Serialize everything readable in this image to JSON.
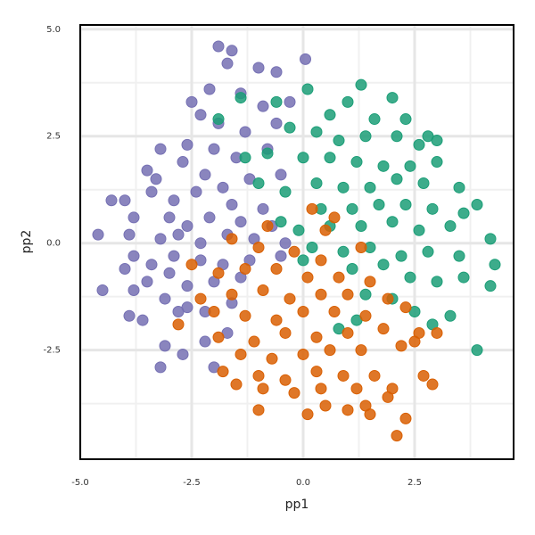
{
  "chart_data": {
    "type": "scatter",
    "x_label": "pp1",
    "y_label": "pp2",
    "xlim": [
      -5.0,
      4.72
    ],
    "ylim": [
      -5.05,
      5.1
    ],
    "xticks": [
      {
        "value": -5,
        "label": "-5.0"
      },
      {
        "value": -2.5,
        "label": "-2.5"
      },
      {
        "value": 0,
        "label": "0.0"
      },
      {
        "value": 2.5,
        "label": "2.5"
      }
    ],
    "yticks": [
      {
        "value": -2.5,
        "label": "-2.5"
      },
      {
        "value": 0,
        "label": "0.0"
      },
      {
        "value": 2.5,
        "label": "2.5"
      },
      {
        "value": 5,
        "label": "5.0"
      }
    ],
    "grid": true,
    "series": [
      {
        "color": "#7570b3",
        "x": [
          -1.9,
          -1.6,
          -1.7,
          -1.0,
          -0.6,
          0.05,
          -2.1,
          -2.5,
          -1.4,
          -0.9,
          -0.3,
          -2.3,
          -1.9,
          -1.3,
          -0.6,
          -3.2,
          -2.6,
          -2.0,
          -1.5,
          -0.8,
          -3.5,
          -3.3,
          -2.7,
          -2.2,
          -1.8,
          -1.2,
          -0.5,
          -4.3,
          -4.0,
          -3.4,
          -2.9,
          -2.4,
          -1.6,
          -0.9,
          -3.8,
          -3.0,
          -2.6,
          -2.1,
          -1.4,
          -0.7,
          -4.6,
          -3.9,
          -3.2,
          -2.8,
          -2.3,
          -1.7,
          -1.1,
          -0.4,
          -3.8,
          -3.4,
          -2.9,
          -2.3,
          -1.8,
          -1.2,
          -0.5,
          -4.0,
          -3.5,
          -3.0,
          -2.6,
          -2.0,
          -1.4,
          -4.5,
          -3.8,
          -3.1,
          -2.6,
          -2.2,
          -1.6,
          -3.9,
          -3.6,
          -2.8,
          -2.2,
          -3.1,
          -2.7,
          -3.2,
          -2.0,
          -1.7
        ],
        "values": [
          4.6,
          4.5,
          4.2,
          4.1,
          4.0,
          4.3,
          3.6,
          3.3,
          3.5,
          3.2,
          3.3,
          3.0,
          2.8,
          2.6,
          2.8,
          2.2,
          2.3,
          2.2,
          2.0,
          2.2,
          1.7,
          1.5,
          1.9,
          1.6,
          1.3,
          1.5,
          1.6,
          1.0,
          1.0,
          1.2,
          1.0,
          1.2,
          0.9,
          0.8,
          0.6,
          0.6,
          0.4,
          0.6,
          0.5,
          0.4,
          0.2,
          0.2,
          0.1,
          0.2,
          0.0,
          0.2,
          0.1,
          0.0,
          -0.3,
          -0.5,
          -0.3,
          -0.4,
          -0.5,
          -0.4,
          -0.3,
          -0.6,
          -0.9,
          -0.7,
          -1.0,
          -0.9,
          -0.8,
          -1.1,
          -1.1,
          -1.3,
          -1.5,
          -1.6,
          -1.4,
          -1.7,
          -1.8,
          -1.6,
          -2.3,
          -2.4,
          -2.6,
          -2.9,
          -2.9,
          -2.1
        ]
      },
      {
        "color": "#1b9e77",
        "x": [
          0.1,
          1.3,
          1.0,
          2.0,
          0.6,
          1.6,
          2.3,
          2.8,
          3.0,
          -0.6,
          -0.3,
          0.3,
          0.8,
          1.4,
          2.1,
          2.6,
          -1.4,
          -1.3,
          -0.8,
          0.0,
          0.6,
          1.2,
          1.8,
          2.4,
          3.0,
          -1.9,
          -1.0,
          -0.4,
          0.3,
          0.9,
          1.5,
          2.1,
          2.7,
          3.5,
          -0.5,
          0.4,
          1.1,
          1.7,
          2.3,
          2.9,
          3.6,
          3.9,
          -0.1,
          0.6,
          1.3,
          2.0,
          2.6,
          3.3,
          4.2,
          0.2,
          0.9,
          1.5,
          2.2,
          2.8,
          3.5,
          4.3,
          0.0,
          1.1,
          1.8,
          2.4,
          3.0,
          3.6,
          4.2,
          1.4,
          2.0,
          2.5,
          3.3,
          2.9,
          1.2,
          0.8,
          3.9
        ],
        "values": [
          3.6,
          3.7,
          3.3,
          3.4,
          3.0,
          2.9,
          2.9,
          2.5,
          2.4,
          3.3,
          2.7,
          2.6,
          2.4,
          2.5,
          2.5,
          2.3,
          3.4,
          2.0,
          2.1,
          2.0,
          2.0,
          1.9,
          1.8,
          1.8,
          1.9,
          2.9,
          1.4,
          1.2,
          1.4,
          1.3,
          1.3,
          1.5,
          1.4,
          1.3,
          0.5,
          0.8,
          0.8,
          0.9,
          0.9,
          0.8,
          0.7,
          0.9,
          0.3,
          0.4,
          0.4,
          0.5,
          0.3,
          0.4,
          0.1,
          -0.1,
          -0.2,
          -0.1,
          -0.3,
          -0.2,
          -0.3,
          -0.5,
          -0.4,
          -0.6,
          -0.5,
          -0.8,
          -0.9,
          -0.8,
          -1.0,
          -1.2,
          -1.3,
          -1.6,
          -1.7,
          -1.9,
          -1.8,
          -2.0,
          -2.5
        ]
      },
      {
        "color": "#d95f02",
        "x": [
          0.2,
          0.7,
          -0.8,
          0.5,
          1.3,
          -1.6,
          -1.0,
          -0.2,
          0.4,
          -2.5,
          -1.9,
          -1.3,
          -0.6,
          0.1,
          0.8,
          1.5,
          -2.3,
          -1.6,
          -0.9,
          -0.3,
          0.4,
          1.0,
          1.9,
          -2.8,
          -2.0,
          -1.3,
          -0.6,
          0.0,
          0.7,
          1.4,
          2.3,
          -1.9,
          -1.1,
          -0.4,
          0.3,
          1.0,
          1.8,
          2.6,
          3.0,
          -1.4,
          -0.7,
          0.0,
          0.6,
          1.3,
          2.2,
          2.5,
          -1.8,
          -1.0,
          -0.4,
          0.3,
          0.9,
          1.6,
          2.7,
          -1.5,
          -0.9,
          -0.2,
          0.4,
          1.2,
          2.0,
          2.9,
          -1.0,
          0.1,
          0.5,
          1.0,
          1.4,
          1.9,
          1.5,
          2.3,
          2.1
        ],
        "values": [
          0.8,
          0.6,
          0.4,
          0.3,
          -0.1,
          0.1,
          -0.1,
          -0.2,
          -0.4,
          -0.5,
          -0.7,
          -0.6,
          -0.6,
          -0.8,
          -0.8,
          -0.9,
          -1.3,
          -1.2,
          -1.1,
          -1.3,
          -1.2,
          -1.2,
          -1.3,
          -1.9,
          -1.6,
          -1.7,
          -1.8,
          -1.6,
          -1.6,
          -1.7,
          -1.5,
          -2.2,
          -2.3,
          -2.1,
          -2.2,
          -2.1,
          -2.0,
          -2.1,
          -2.1,
          -2.6,
          -2.7,
          -2.6,
          -2.5,
          -2.5,
          -2.4,
          -2.3,
          -3.0,
          -3.1,
          -3.2,
          -3.0,
          -3.1,
          -3.1,
          -3.1,
          -3.3,
          -3.4,
          -3.5,
          -3.4,
          -3.4,
          -3.4,
          -3.3,
          -3.9,
          -4.0,
          -3.8,
          -3.9,
          -3.8,
          -3.6,
          -4.0,
          -4.1,
          -4.5
        ]
      }
    ]
  }
}
